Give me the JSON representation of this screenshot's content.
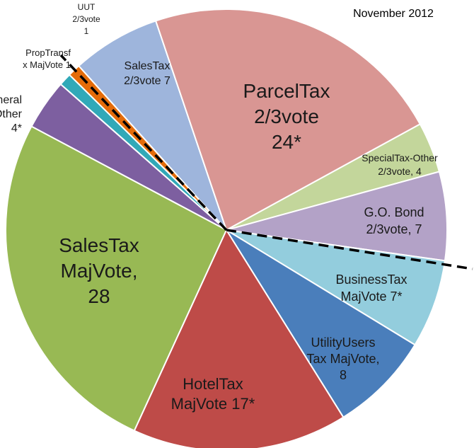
{
  "chart_data": {
    "type": "pie",
    "title": "November 2012",
    "start_category": "SalesTax 2/3vote",
    "slices": [
      {
        "name": "SalesTax 2/3vote",
        "value": 7,
        "lines": [
          "SalesTax",
          "2/3vote 7"
        ],
        "color": "#9eb5dc"
      },
      {
        "name": "ParcelTax 2/3vote",
        "value": 24,
        "lines": [
          "ParcelTax",
          "2/3vote",
          "24*"
        ],
        "color": "#d99693"
      },
      {
        "name": "SpecialTax-Other 2/3vote",
        "value": 4,
        "lines": [
          "SpecialTax-Other",
          "2/3vote, 4"
        ],
        "color": "#c3d69b"
      },
      {
        "name": "G.O. Bond 2/3vote",
        "value": 7,
        "lines": [
          "G.O. Bond",
          "2/3vote,  7"
        ],
        "color": "#b3a2c7"
      },
      {
        "name": "BusinessTax MajVote",
        "value": 7,
        "lines": [
          "BusinessTax",
          "MajVote 7*"
        ],
        "color": "#93cddd"
      },
      {
        "name": "UtilityUsers Tax MajVote",
        "value": 8,
        "lines": [
          "UtilityUsers",
          "Tax MajVote,",
          "8"
        ],
        "color": "#4a7ebb"
      },
      {
        "name": "HotelTax MajVote",
        "value": 17,
        "lines": [
          "HotelTax",
          "MajVote 17*"
        ],
        "color": "#be4b48"
      },
      {
        "name": "SalesTax MajVote",
        "value": 28,
        "lines": [
          "SalesTax",
          "MajVote,",
          "28"
        ],
        "color": "#98b954"
      },
      {
        "name": "GeneralTax-Other",
        "value": 4,
        "lines": [
          "eneral",
          "x-Other",
          "4*"
        ],
        "color": "#7d5fa0"
      },
      {
        "name": "PropTransfTax MajVote",
        "value": 1,
        "lines": [
          "PropTransf",
          "x MajVote 1"
        ],
        "color": "#31a9b8"
      },
      {
        "name": "UUT 2/3vote",
        "value": 1,
        "lines": [
          "UUT",
          "2/3vote",
          "1"
        ],
        "color": "#e46c0a"
      }
    ]
  }
}
